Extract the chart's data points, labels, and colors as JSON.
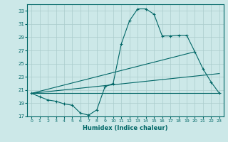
{
  "xlabel": "Humidex (Indice chaleur)",
  "bg_color": "#cce8e8",
  "grid_color": "#aacccc",
  "line_color": "#006666",
  "xlim": [
    -0.5,
    23.5
  ],
  "ylim": [
    17,
    34
  ],
  "yticks": [
    17,
    19,
    21,
    23,
    25,
    27,
    29,
    31,
    33
  ],
  "xticks": [
    0,
    1,
    2,
    3,
    4,
    5,
    6,
    7,
    8,
    9,
    10,
    11,
    12,
    13,
    14,
    15,
    16,
    17,
    18,
    19,
    20,
    21,
    22,
    23
  ],
  "line1_x": [
    0,
    1,
    2,
    3,
    4,
    5,
    6,
    7,
    8,
    9,
    10,
    11,
    12,
    13,
    14,
    15,
    16,
    17,
    18,
    19,
    20,
    21,
    22,
    23
  ],
  "line1_y": [
    20.5,
    20.0,
    19.5,
    19.3,
    18.9,
    18.7,
    17.5,
    17.2,
    18.0,
    21.5,
    22.0,
    28.0,
    31.5,
    33.3,
    33.3,
    32.5,
    29.2,
    29.2,
    29.3,
    29.3,
    26.8,
    24.2,
    22.2,
    20.5
  ],
  "line2_x": [
    0,
    23
  ],
  "line2_y": [
    20.5,
    20.5
  ],
  "line3_x": [
    0,
    23
  ],
  "line3_y": [
    20.5,
    20.5
  ],
  "line4_x": [
    0,
    20
  ],
  "line4_y": [
    20.5,
    26.8
  ]
}
